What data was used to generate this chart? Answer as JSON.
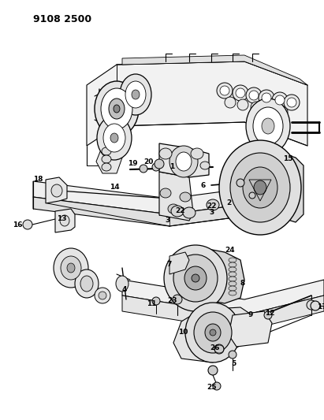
{
  "title": "9108 2500",
  "bg_color": "#ffffff",
  "line_color": "#000000",
  "fig_width": 4.11,
  "fig_height": 5.33,
  "dpi": 100,
  "label_fontsize": 6.5,
  "title_fontsize": 9,
  "lw_main": 0.8,
  "lw_thin": 0.5,
  "engine_color": "#e8e8e8",
  "part_gray": "#d0d0d0",
  "part_dark": "#a0a0a0",
  "part_mid": "#b8b8b8"
}
